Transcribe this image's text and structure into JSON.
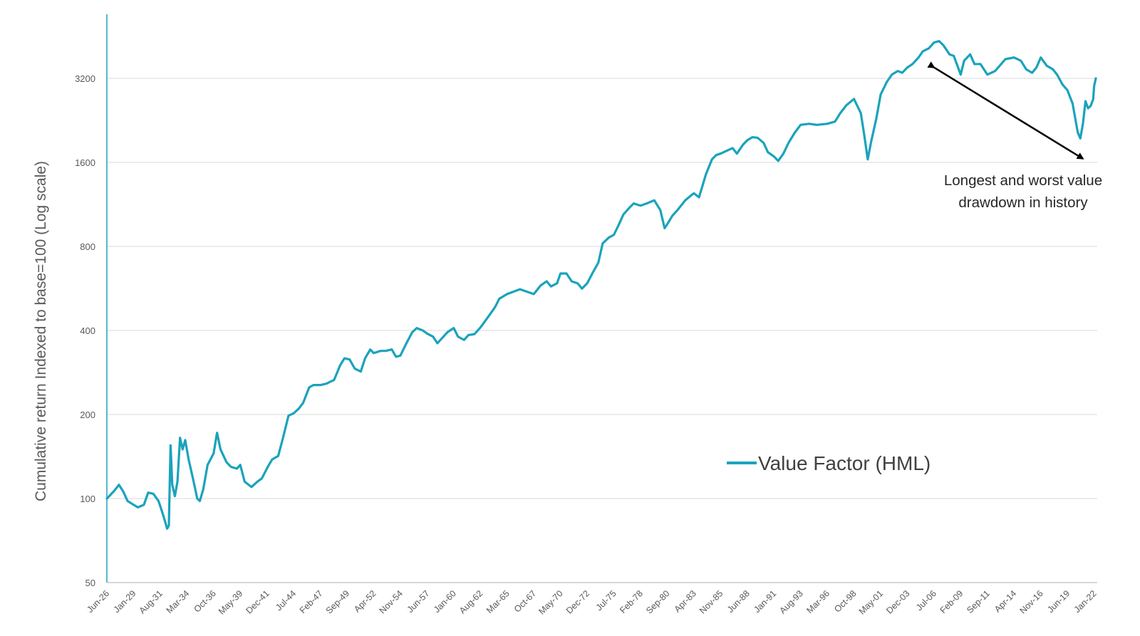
{
  "chart_data": {
    "type": "line",
    "title": "",
    "xlabel": "",
    "ylabel": "Cumulative return Indexed to base=100 (Log scale)",
    "yscale": "log",
    "ylim": [
      50,
      4500
    ],
    "y_ticks": [
      "50",
      "100",
      "200",
      "400",
      "800",
      "1600",
      "3200"
    ],
    "y_tick_values": [
      50,
      100,
      200,
      400,
      800,
      1600,
      3200
    ],
    "x_range": [
      "Jun-26",
      "Mar-22"
    ],
    "x_ticks": [
      {
        "label": "Jun-26",
        "date": "1926-06"
      },
      {
        "label": "Jan-29",
        "date": "1929-01"
      },
      {
        "label": "Aug-31",
        "date": "1931-08"
      },
      {
        "label": "Mar-34",
        "date": "1934-03"
      },
      {
        "label": "Oct-36",
        "date": "1936-10"
      },
      {
        "label": "May-39",
        "date": "1939-05"
      },
      {
        "label": "Dec-41",
        "date": "1941-12"
      },
      {
        "label": "Jul-44",
        "date": "1944-07"
      },
      {
        "label": "Feb-47",
        "date": "1947-02"
      },
      {
        "label": "Sep-49",
        "date": "1949-09"
      },
      {
        "label": "Apr-52",
        "date": "1952-04"
      },
      {
        "label": "Nov-54",
        "date": "1954-11"
      },
      {
        "label": "Jun-57",
        "date": "1957-06"
      },
      {
        "label": "Jan-60",
        "date": "1960-01"
      },
      {
        "label": "Aug-62",
        "date": "1962-08"
      },
      {
        "label": "Mar-65",
        "date": "1965-03"
      },
      {
        "label": "Oct-67",
        "date": "1967-10"
      },
      {
        "label": "May-70",
        "date": "1970-05"
      },
      {
        "label": "Dec-72",
        "date": "1972-12"
      },
      {
        "label": "Jul-75",
        "date": "1975-07"
      },
      {
        "label": "Feb-78",
        "date": "1978-02"
      },
      {
        "label": "Sep-80",
        "date": "1980-09"
      },
      {
        "label": "Apr-83",
        "date": "1983-04"
      },
      {
        "label": "Nov-85",
        "date": "1985-11"
      },
      {
        "label": "Jun-88",
        "date": "1988-06"
      },
      {
        "label": "Jan-91",
        "date": "1991-01"
      },
      {
        "label": "Aug-93",
        "date": "1993-08"
      },
      {
        "label": "Mar-96",
        "date": "1996-03"
      },
      {
        "label": "Oct-98",
        "date": "1998-10"
      },
      {
        "label": "May-01",
        "date": "2001-05"
      },
      {
        "label": "Dec-03",
        "date": "2003-12"
      },
      {
        "label": "Jul-06",
        "date": "2006-07"
      },
      {
        "label": "Feb-09",
        "date": "2009-02"
      },
      {
        "label": "Sep-11",
        "date": "2011-09"
      },
      {
        "label": "Apr-14",
        "date": "2014-04"
      },
      {
        "label": "Nov-16",
        "date": "2016-11"
      },
      {
        "label": "Jun-19",
        "date": "2019-06"
      },
      {
        "label": "Jan-22",
        "date": "2022-01"
      }
    ],
    "grid": {
      "horizontal": true,
      "vertical": false
    },
    "legend_position": "bottom-right",
    "series": [
      {
        "name": "Value Factor (HML)",
        "color": "#1aa3bb",
        "points": [
          [
            "1926-06",
            100
          ],
          [
            "1926-10",
            103
          ],
          [
            "1927-03",
            107
          ],
          [
            "1927-08",
            112
          ],
          [
            "1928-01",
            106
          ],
          [
            "1928-06",
            98
          ],
          [
            "1929-01",
            95
          ],
          [
            "1929-06",
            93
          ],
          [
            "1930-01",
            95
          ],
          [
            "1930-06",
            105
          ],
          [
            "1930-12",
            104
          ],
          [
            "1931-06",
            98
          ],
          [
            "1931-10",
            90
          ],
          [
            "1932-01",
            84
          ],
          [
            "1932-04",
            78
          ],
          [
            "1932-06",
            80
          ],
          [
            "1932-08",
            155
          ],
          [
            "1932-10",
            112
          ],
          [
            "1933-01",
            102
          ],
          [
            "1933-04",
            115
          ],
          [
            "1933-07",
            165
          ],
          [
            "1933-10",
            150
          ],
          [
            "1934-01",
            162
          ],
          [
            "1934-05",
            138
          ],
          [
            "1934-10",
            118
          ],
          [
            "1935-03",
            100
          ],
          [
            "1935-06",
            98
          ],
          [
            "1935-10",
            108
          ],
          [
            "1936-03",
            132
          ],
          [
            "1936-10",
            145
          ],
          [
            "1937-02",
            172
          ],
          [
            "1937-06",
            150
          ],
          [
            "1938-01",
            135
          ],
          [
            "1938-06",
            130
          ],
          [
            "1939-01",
            128
          ],
          [
            "1939-05",
            132
          ],
          [
            "1939-10",
            115
          ],
          [
            "1940-06",
            110
          ],
          [
            "1941-01",
            115
          ],
          [
            "1941-06",
            118
          ],
          [
            "1942-01",
            130
          ],
          [
            "1942-06",
            138
          ],
          [
            "1943-01",
            142
          ],
          [
            "1943-06",
            162
          ],
          [
            "1944-01",
            198
          ],
          [
            "1944-07",
            202
          ],
          [
            "1945-01",
            210
          ],
          [
            "1945-06",
            220
          ],
          [
            "1946-01",
            250
          ],
          [
            "1946-06",
            255
          ],
          [
            "1947-02",
            255
          ],
          [
            "1947-09",
            258
          ],
          [
            "1948-06",
            266
          ],
          [
            "1949-01",
            300
          ],
          [
            "1949-06",
            318
          ],
          [
            "1949-12",
            315
          ],
          [
            "1950-06",
            292
          ],
          [
            "1951-01",
            285
          ],
          [
            "1951-06",
            318
          ],
          [
            "1951-12",
            342
          ],
          [
            "1952-04",
            332
          ],
          [
            "1952-12",
            338
          ],
          [
            "1953-06",
            338
          ],
          [
            "1954-01",
            342
          ],
          [
            "1954-06",
            322
          ],
          [
            "1954-11",
            325
          ],
          [
            "1955-06",
            360
          ],
          [
            "1956-01",
            395
          ],
          [
            "1956-06",
            408
          ],
          [
            "1957-01",
            400
          ],
          [
            "1957-06",
            390
          ],
          [
            "1958-01",
            380
          ],
          [
            "1958-06",
            360
          ],
          [
            "1959-01",
            380
          ],
          [
            "1959-06",
            395
          ],
          [
            "1960-01",
            408
          ],
          [
            "1960-06",
            380
          ],
          [
            "1961-01",
            370
          ],
          [
            "1961-06",
            385
          ],
          [
            "1962-01",
            388
          ],
          [
            "1962-08",
            410
          ],
          [
            "1963-06",
            452
          ],
          [
            "1964-01",
            485
          ],
          [
            "1964-06",
            520
          ],
          [
            "1965-03",
            540
          ],
          [
            "1965-10",
            550
          ],
          [
            "1966-06",
            562
          ],
          [
            "1967-01",
            552
          ],
          [
            "1967-10",
            540
          ],
          [
            "1968-06",
            580
          ],
          [
            "1969-01",
            600
          ],
          [
            "1969-06",
            575
          ],
          [
            "1970-01",
            590
          ],
          [
            "1970-05",
            640
          ],
          [
            "1970-12",
            640
          ],
          [
            "1971-06",
            600
          ],
          [
            "1972-01",
            590
          ],
          [
            "1972-06",
            565
          ],
          [
            "1972-12",
            590
          ],
          [
            "1973-06",
            640
          ],
          [
            "1974-01",
            700
          ],
          [
            "1974-06",
            820
          ],
          [
            "1975-01",
            860
          ],
          [
            "1975-07",
            880
          ],
          [
            "1976-01",
            960
          ],
          [
            "1976-06",
            1040
          ],
          [
            "1977-01",
            1100
          ],
          [
            "1977-06",
            1140
          ],
          [
            "1978-02",
            1120
          ],
          [
            "1978-09",
            1140
          ],
          [
            "1979-06",
            1170
          ],
          [
            "1980-01",
            1080
          ],
          [
            "1980-06",
            930
          ],
          [
            "1980-09",
            960
          ],
          [
            "1981-03",
            1030
          ],
          [
            "1981-09",
            1080
          ],
          [
            "1982-06",
            1170
          ],
          [
            "1983-01",
            1220
          ],
          [
            "1983-04",
            1240
          ],
          [
            "1983-10",
            1200
          ],
          [
            "1984-06",
            1450
          ],
          [
            "1985-01",
            1640
          ],
          [
            "1985-06",
            1700
          ],
          [
            "1985-11",
            1720
          ],
          [
            "1986-06",
            1760
          ],
          [
            "1987-01",
            1800
          ],
          [
            "1987-06",
            1720
          ],
          [
            "1988-01",
            1850
          ],
          [
            "1988-06",
            1920
          ],
          [
            "1988-12",
            1970
          ],
          [
            "1989-06",
            1960
          ],
          [
            "1990-01",
            1880
          ],
          [
            "1990-06",
            1740
          ],
          [
            "1991-01",
            1680
          ],
          [
            "1991-06",
            1620
          ],
          [
            "1991-12",
            1720
          ],
          [
            "1992-06",
            1880
          ],
          [
            "1993-01",
            2040
          ],
          [
            "1993-08",
            2180
          ],
          [
            "1994-06",
            2200
          ],
          [
            "1995-03",
            2180
          ],
          [
            "1996-03",
            2200
          ],
          [
            "1996-12",
            2240
          ],
          [
            "1997-06",
            2400
          ],
          [
            "1998-01",
            2560
          ],
          [
            "1998-10",
            2700
          ],
          [
            "1999-06",
            2400
          ],
          [
            "1999-10",
            2000
          ],
          [
            "2000-02",
            1640
          ],
          [
            "2000-06",
            1900
          ],
          [
            "2000-12",
            2300
          ],
          [
            "2001-05",
            2800
          ],
          [
            "2001-12",
            3100
          ],
          [
            "2002-06",
            3300
          ],
          [
            "2003-01",
            3400
          ],
          [
            "2003-06",
            3350
          ],
          [
            "2003-12",
            3500
          ],
          [
            "2004-06",
            3600
          ],
          [
            "2005-01",
            3800
          ],
          [
            "2005-06",
            4000
          ],
          [
            "2006-01",
            4100
          ],
          [
            "2006-07",
            4300
          ],
          [
            "2007-01",
            4350
          ],
          [
            "2007-06",
            4200
          ],
          [
            "2008-01",
            3900
          ],
          [
            "2008-06",
            3850
          ],
          [
            "2009-02",
            3300
          ],
          [
            "2009-06",
            3700
          ],
          [
            "2010-01",
            3900
          ],
          [
            "2010-06",
            3600
          ],
          [
            "2011-01",
            3600
          ],
          [
            "2011-09",
            3300
          ],
          [
            "2012-06",
            3400
          ],
          [
            "2013-01",
            3600
          ],
          [
            "2013-06",
            3750
          ],
          [
            "2014-04",
            3800
          ],
          [
            "2014-12",
            3700
          ],
          [
            "2015-06",
            3450
          ],
          [
            "2016-01",
            3350
          ],
          [
            "2016-06",
            3500
          ],
          [
            "2016-11",
            3800
          ],
          [
            "2017-06",
            3550
          ],
          [
            "2018-01",
            3450
          ],
          [
            "2018-06",
            3300
          ],
          [
            "2018-12",
            3050
          ],
          [
            "2019-06",
            2900
          ],
          [
            "2019-12",
            2600
          ],
          [
            "2020-06",
            2050
          ],
          [
            "2020-09",
            1950
          ],
          [
            "2020-12",
            2200
          ],
          [
            "2021-03",
            2650
          ],
          [
            "2021-06",
            2500
          ],
          [
            "2021-09",
            2550
          ],
          [
            "2021-12",
            2700
          ],
          [
            "2022-01",
            3000
          ],
          [
            "2022-03",
            3200
          ]
        ]
      }
    ],
    "annotation": {
      "lines": [
        "Longest and worst value",
        "drawdown in history"
      ],
      "arrow_from": [
        "2006-07",
        3500
      ],
      "arrow_to": [
        "2020-12",
        1650
      ]
    }
  }
}
